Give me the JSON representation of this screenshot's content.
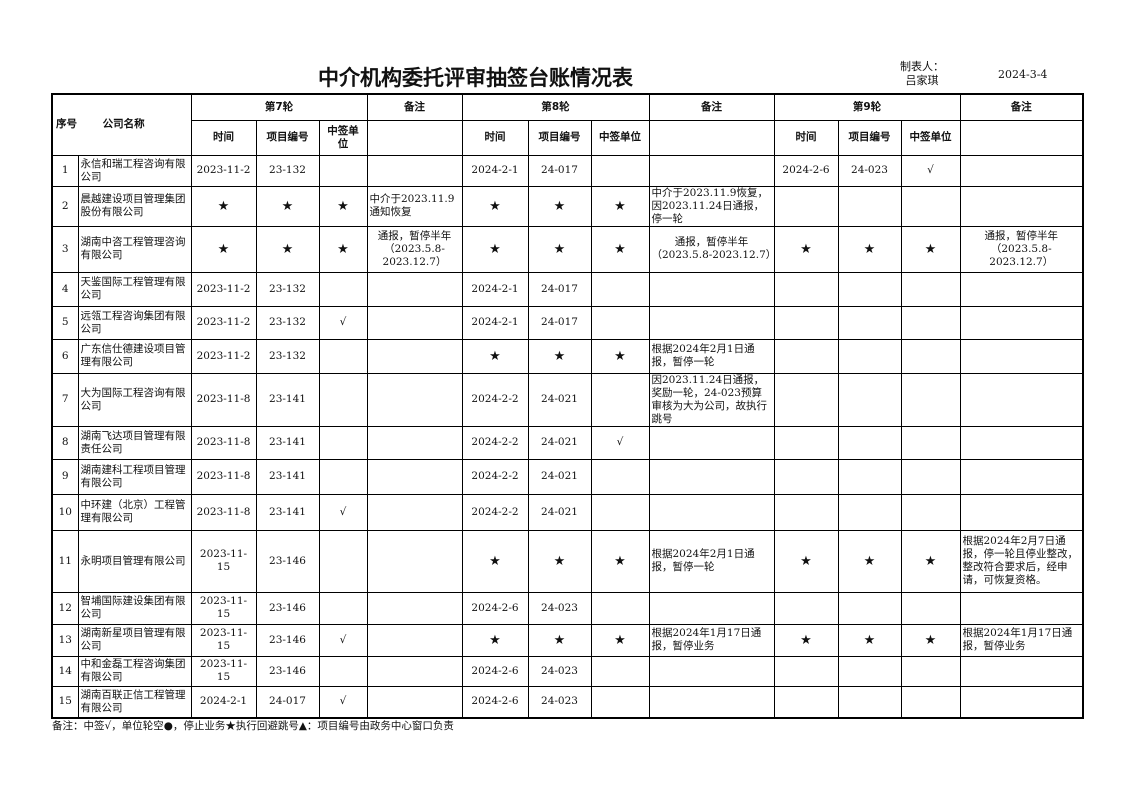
{
  "title": "中介机构委托评审抽签台账情况表",
  "maker_label": "制表人：",
  "maker_name": "吕家琪",
  "date": "2024-3-4",
  "headers": {
    "seq": "序号",
    "company": "公司名称",
    "round7": "第7轮",
    "round8": "第8轮",
    "round9": "第9轮",
    "note": "备注",
    "time": "时间",
    "code": "项目编号",
    "won": "中签单位",
    "won7": "中签单\n位"
  },
  "rows": [
    {
      "seq": "1",
      "company": "永信和瑞工程咨询有限公司",
      "r7": [
        "2023-11-2",
        "23-132",
        ""
      ],
      "n7": "",
      "r8": [
        "2024-2-1",
        "24-017",
        ""
      ],
      "n8": "",
      "r9": [
        "2024-2-6",
        "24-023",
        "√"
      ],
      "n9": ""
    },
    {
      "seq": "2",
      "company": "晨越建设项目管理集团股份有限公司",
      "r7": [
        "★",
        "★",
        "★"
      ],
      "n7": "中介于2023.11.9通知恢复",
      "r8": [
        "★",
        "★",
        "★"
      ],
      "n8": "中介于2023.11.9恢复，因2023.11.24日通报，停一轮",
      "r9": [
        "",
        "",
        ""
      ],
      "n9": ""
    },
    {
      "seq": "3",
      "company": "湖南中咨工程管理咨询有限公司",
      "r7": [
        "★",
        "★",
        "★"
      ],
      "n7": "通报，暂停半年（2023.5.8-2023.12.7）",
      "r8": [
        "★",
        "★",
        "★"
      ],
      "n8": "通报，暂停半年（2023.5.8-2023.12.7）",
      "r9": [
        "★",
        "★",
        "★"
      ],
      "n9": "通报，暂停半年（2023.5.8-2023.12.7）"
    },
    {
      "seq": "4",
      "company": "天鉴国际工程管理有限公司",
      "r7": [
        "2023-11-2",
        "23-132",
        ""
      ],
      "n7": "",
      "r8": [
        "2024-2-1",
        "24-017",
        ""
      ],
      "n8": "",
      "r9": [
        "",
        "",
        ""
      ],
      "n9": ""
    },
    {
      "seq": "5",
      "company": "远瓴工程咨询集团有限公司",
      "r7": [
        "2023-11-2",
        "23-132",
        "√"
      ],
      "n7": "",
      "r8": [
        "2024-2-1",
        "24-017",
        ""
      ],
      "n8": "",
      "r9": [
        "",
        "",
        ""
      ],
      "n9": ""
    },
    {
      "seq": "6",
      "company": "广东信仕德建设项目管理有限公司",
      "r7": [
        "2023-11-2",
        "23-132",
        ""
      ],
      "n7": "",
      "r8": [
        "★",
        "★",
        "★"
      ],
      "n8": "根据2024年2月1日通报，暂停一轮",
      "r9": [
        "",
        "",
        ""
      ],
      "n9": ""
    },
    {
      "seq": "7",
      "company": "大为国际工程咨询有限公司",
      "r7": [
        "2023-11-8",
        "23-141",
        ""
      ],
      "n7": "",
      "r8": [
        "2024-2-2",
        "24-021",
        ""
      ],
      "n8": "因2023.11.24日通报，奖励一轮，24-023预算审核为大为公司，故执行跳号",
      "r9": [
        "",
        "",
        ""
      ],
      "n9": ""
    },
    {
      "seq": "8",
      "company": "湖南飞达项目管理有限责任公司",
      "r7": [
        "2023-11-8",
        "23-141",
        ""
      ],
      "n7": "",
      "r8": [
        "2024-2-2",
        "24-021",
        "√"
      ],
      "n8": "",
      "r9": [
        "",
        "",
        ""
      ],
      "n9": ""
    },
    {
      "seq": "9",
      "company": "湖南建科工程项目管理有限公司",
      "r7": [
        "2023-11-8",
        "23-141",
        ""
      ],
      "n7": "",
      "r8": [
        "2024-2-2",
        "24-021",
        ""
      ],
      "n8": "",
      "r9": [
        "",
        "",
        ""
      ],
      "n9": ""
    },
    {
      "seq": "10",
      "company": "中环建（北京）工程管理有限公司",
      "r7": [
        "2023-11-8",
        "23-141",
        "√"
      ],
      "n7": "",
      "r8": [
        "2024-2-2",
        "24-021",
        ""
      ],
      "n8": "",
      "r9": [
        "",
        "",
        ""
      ],
      "n9": ""
    },
    {
      "seq": "11",
      "company": "永明项目管理有限公司",
      "r7": [
        "2023-11-15",
        "23-146",
        ""
      ],
      "n7": "",
      "r8": [
        "★",
        "★",
        "★"
      ],
      "n8": "根据2024年2月1日通报，暂停一轮",
      "r9": [
        "★",
        "★",
        "★"
      ],
      "n9": "根据2024年2月7日通报，停一轮且停业整改，整改符合要求后，经申请，可恢复资格。"
    },
    {
      "seq": "12",
      "company": "智埔国际建设集团有限公司",
      "r7": [
        "2023-11-15",
        "23-146",
        ""
      ],
      "n7": "",
      "r8": [
        "2024-2-6",
        "24-023",
        ""
      ],
      "n8": "",
      "r9": [
        "",
        "",
        ""
      ],
      "n9": ""
    },
    {
      "seq": "13",
      "company": "湖南新星项目管理有限公司",
      "r7": [
        "2023-11-15",
        "23-146",
        "√"
      ],
      "n7": "",
      "r8": [
        "★",
        "★",
        "★"
      ],
      "n8": "根据2024年1月17日通报，暂停业务",
      "r9": [
        "★",
        "★",
        "★"
      ],
      "n9": "根据2024年1月17日通报，暂停业务"
    },
    {
      "seq": "14",
      "company": "中和金磊工程咨询集团有限公司",
      "r7": [
        "2023-11-15",
        "23-146",
        ""
      ],
      "n7": "",
      "r8": [
        "2024-2-6",
        "24-023",
        ""
      ],
      "n8": "",
      "r9": [
        "",
        "",
        ""
      ],
      "n9": ""
    },
    {
      "seq": "15",
      "company": "湖南百联正信工程管理有限公司",
      "r7": [
        "2024-2-1",
        "24-017",
        "√"
      ],
      "n7": "",
      "r8": [
        "2024-2-6",
        "24-023",
        ""
      ],
      "n8": "",
      "r9": [
        "",
        "",
        ""
      ],
      "n9": ""
    }
  ],
  "footer": "备注：中签√，单位轮空●，停止业务★执行回避跳号▲：项目编号由政务中心窗口负责"
}
